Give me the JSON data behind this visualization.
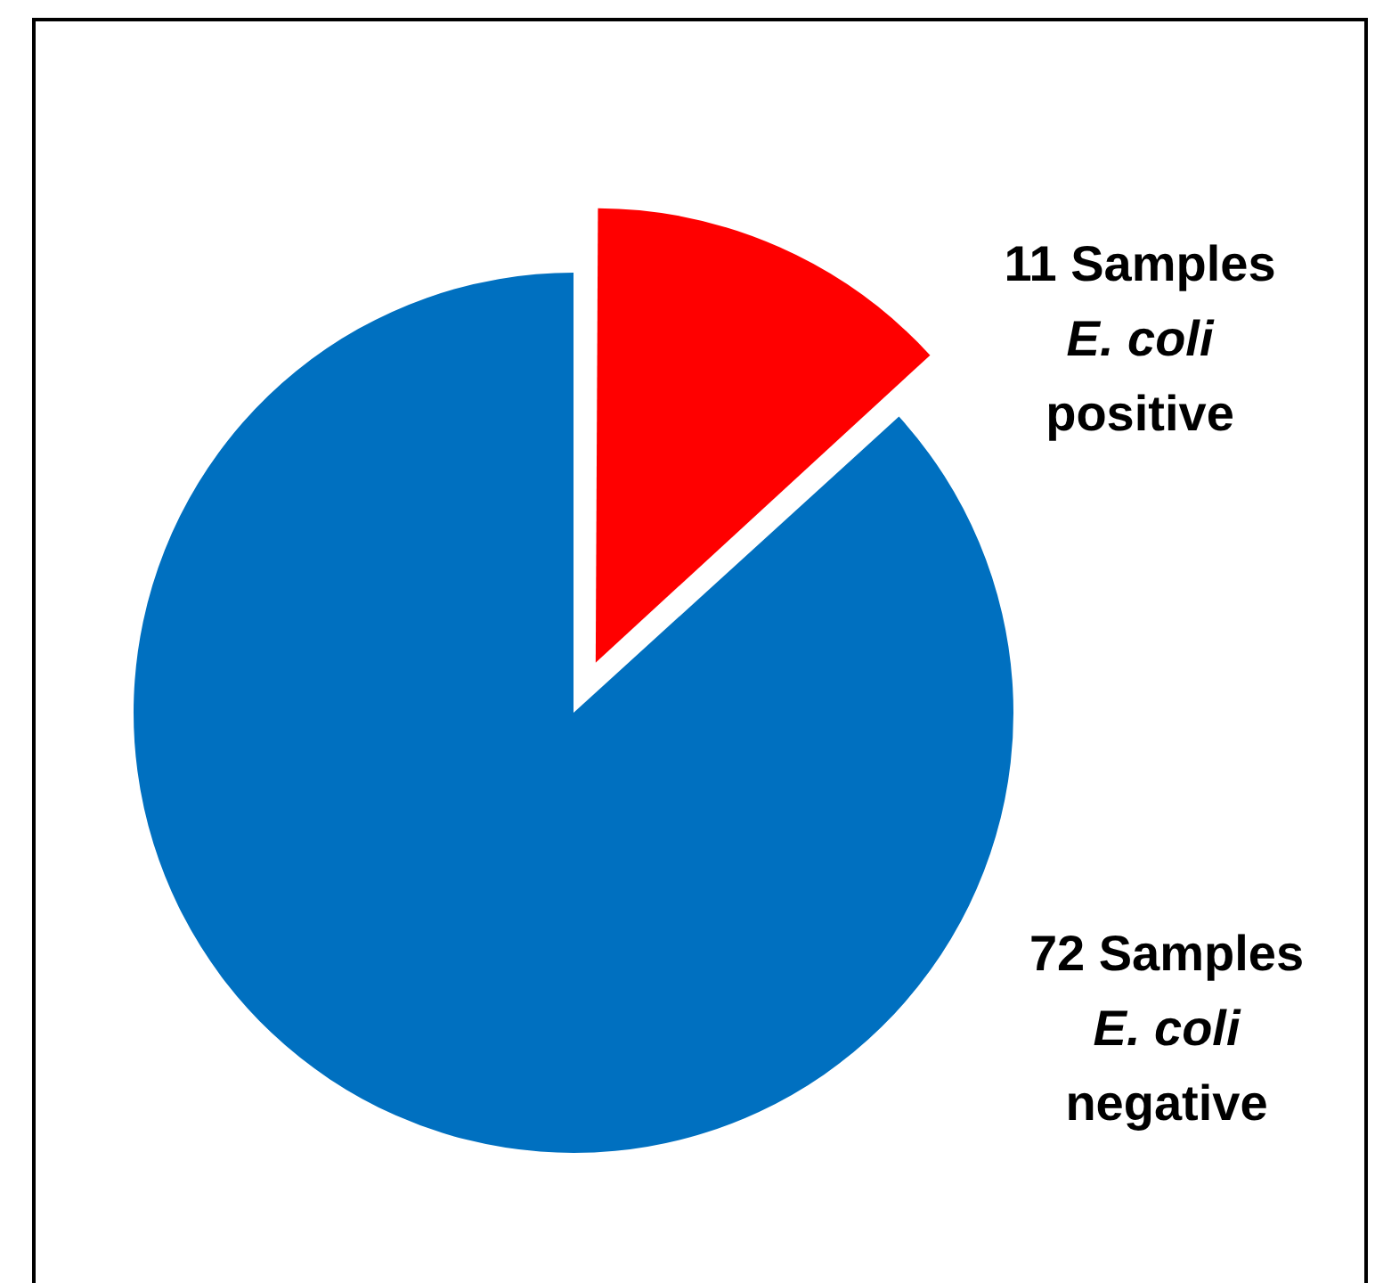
{
  "chart_data": {
    "type": "pie",
    "categories": [
      "E. coli positive",
      "E. coli negative"
    ],
    "values": [
      11,
      72
    ],
    "colors": [
      "#ff0000",
      "#0070c0"
    ],
    "value_labels": [
      "11 Samples",
      "72 Samples"
    ],
    "legend": false
  }
}
